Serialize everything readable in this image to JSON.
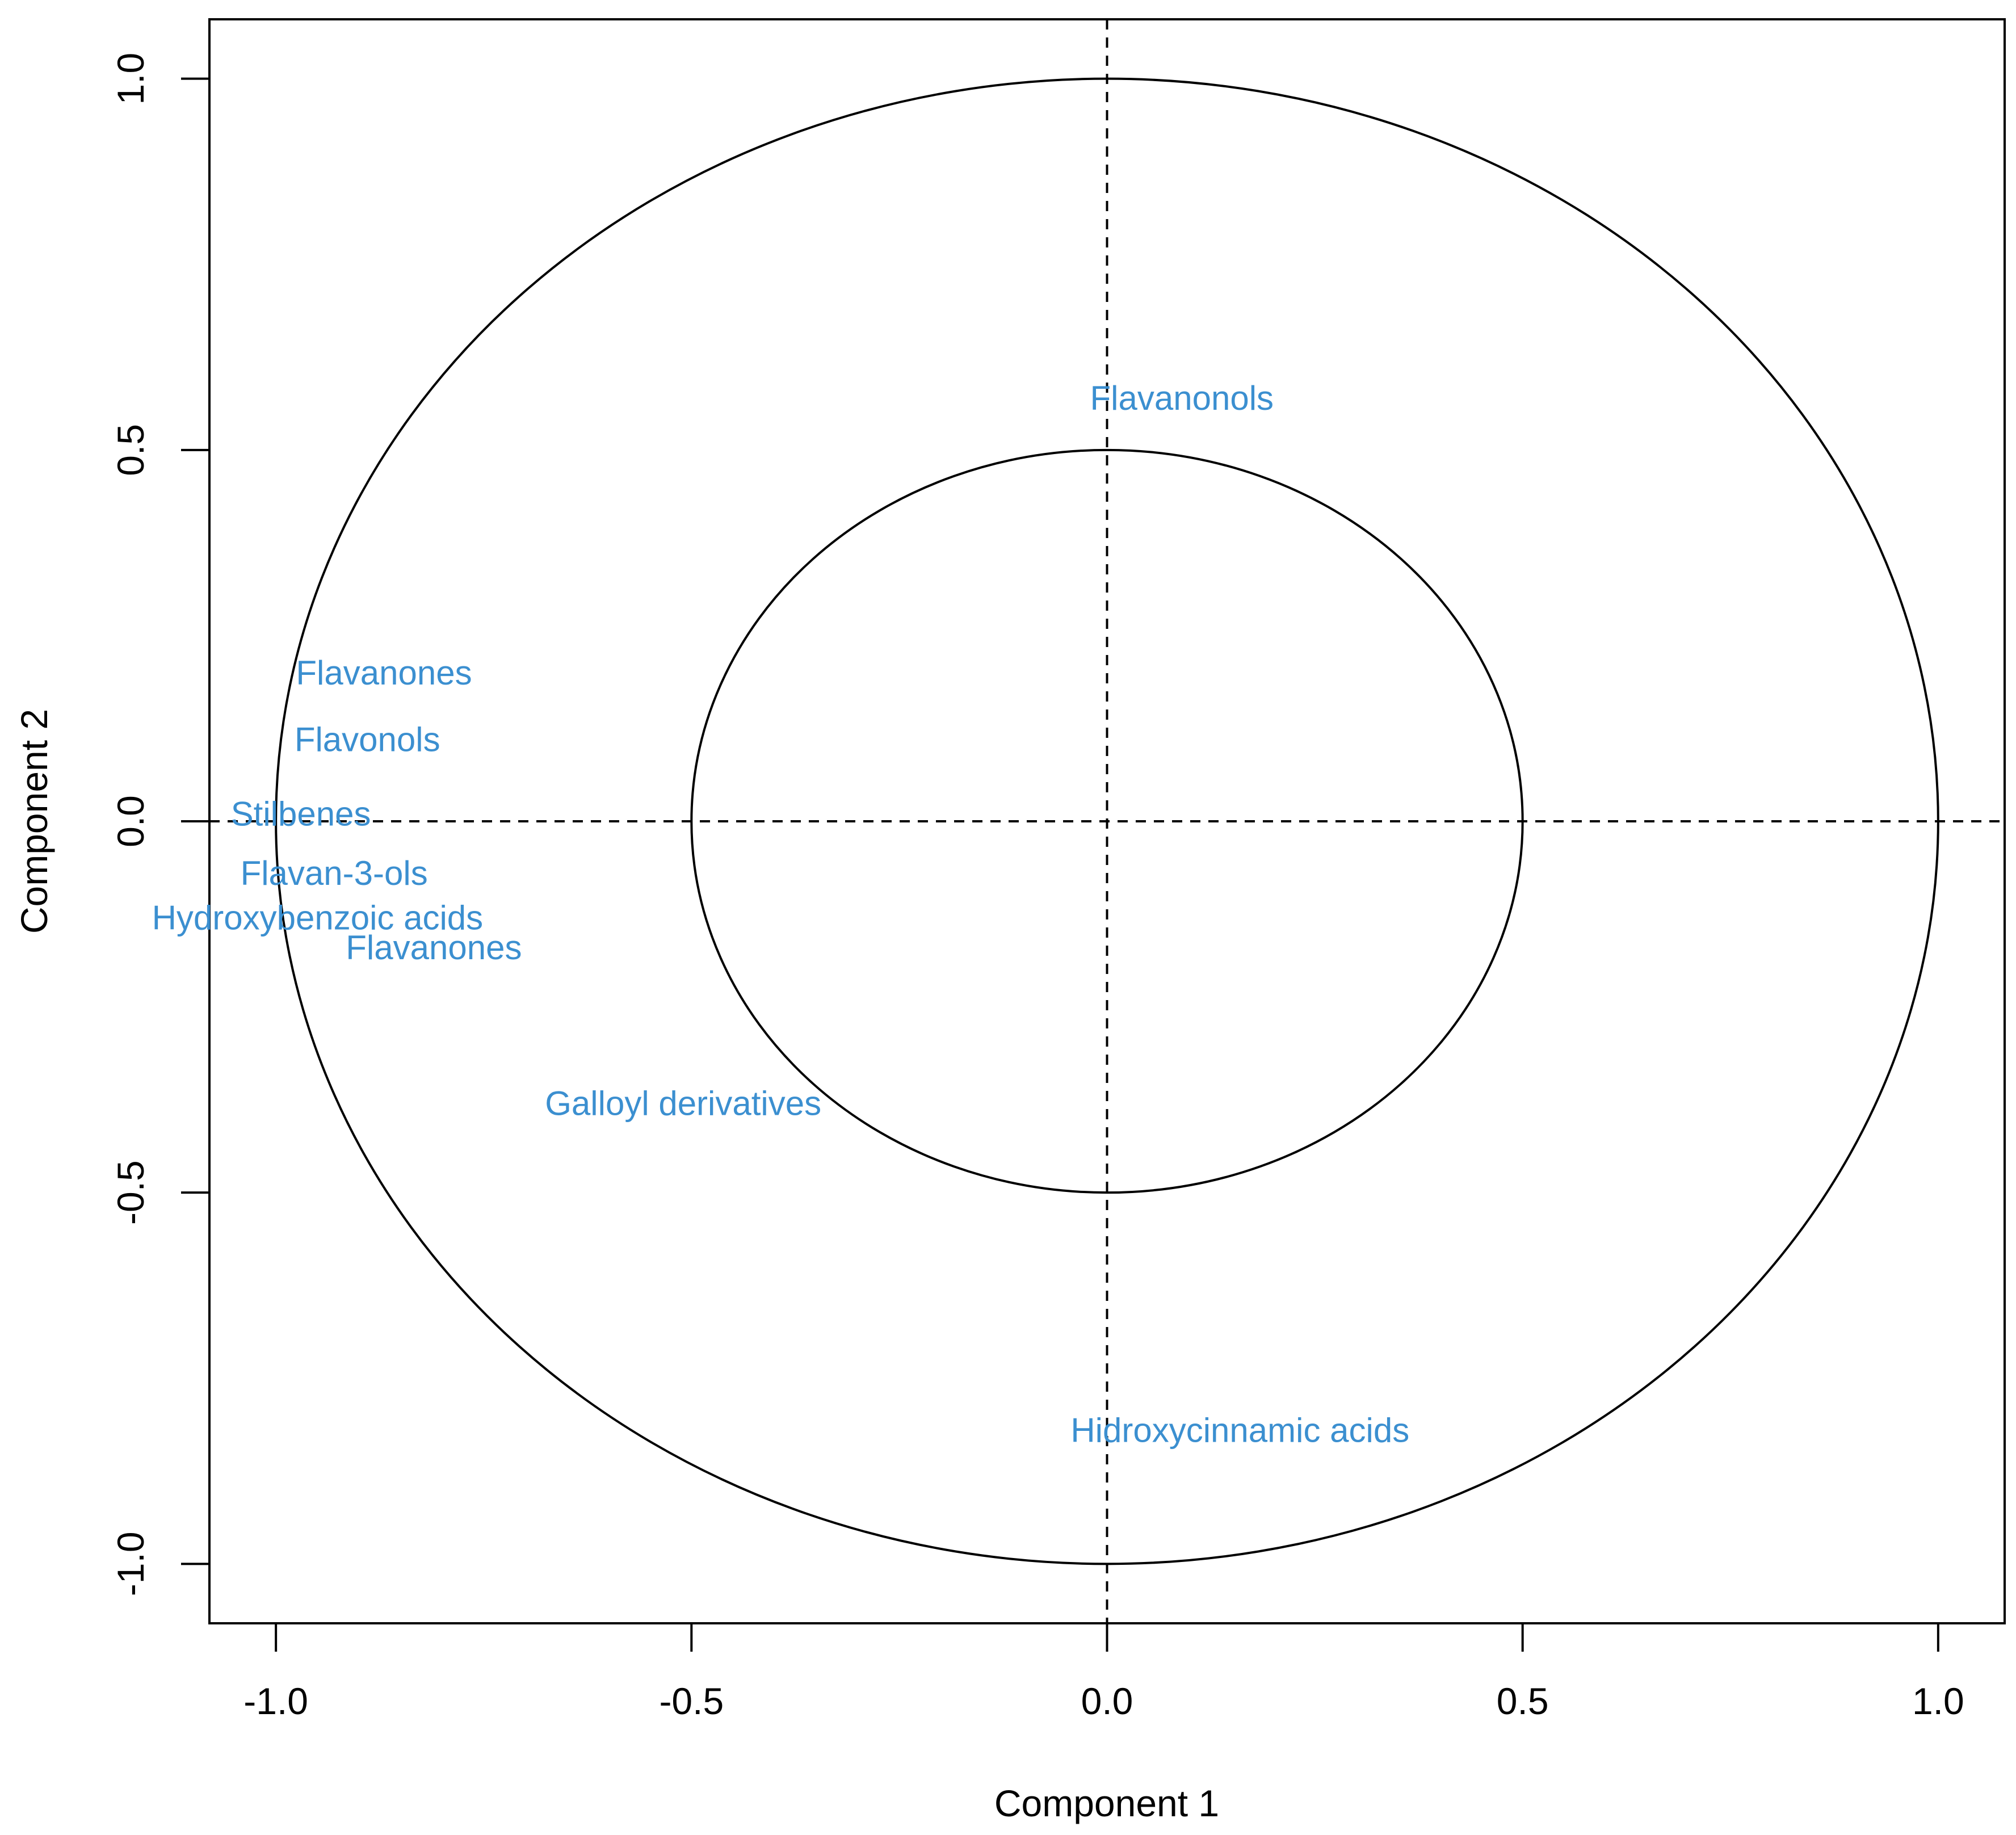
{
  "chart_data": {
    "type": "scatter",
    "title": "",
    "xlabel": "Component  1",
    "ylabel": "Component  2",
    "xlim": [
      -1.08,
      1.08
    ],
    "ylim": [
      -1.08,
      1.08
    ],
    "xticks": [
      -1.0,
      -0.5,
      0.0,
      0.5,
      1.0
    ],
    "yticks": [
      -1.0,
      -0.5,
      0.0,
      0.5,
      1.0
    ],
    "xtick_labels": [
      "-1.0",
      "-0.5",
      "0.0",
      "0.5",
      "1.0"
    ],
    "ytick_labels": [
      "-1.0",
      "-0.5",
      "0.0",
      "0.5",
      "1.0"
    ],
    "circles": [
      {
        "radius": 1.0
      },
      {
        "radius": 0.5
      }
    ],
    "reference_lines": {
      "x0": true,
      "y0": true,
      "style": "dashed"
    },
    "label_color": "#3b8fd0",
    "points": [
      {
        "label": "Flavanonols",
        "x": 0.09,
        "y": 0.57
      },
      {
        "label": "Flavanones",
        "x": -0.87,
        "y": 0.2
      },
      {
        "label": "Flavonols",
        "x": -0.89,
        "y": 0.11
      },
      {
        "label": "Stilbenes",
        "x": -0.97,
        "y": 0.01
      },
      {
        "label": "Flavan-3-ols",
        "x": -0.93,
        "y": -0.07
      },
      {
        "label": "Hydroxybenzoic acids",
        "x": -0.95,
        "y": -0.13
      },
      {
        "label": "Flavanones",
        "x": -0.81,
        "y": -0.17
      },
      {
        "label": "Galloyl derivatives",
        "x": -0.51,
        "y": -0.38
      },
      {
        "label": "Hidroxycinnamic acids",
        "x": 0.16,
        "y": -0.82
      }
    ]
  }
}
